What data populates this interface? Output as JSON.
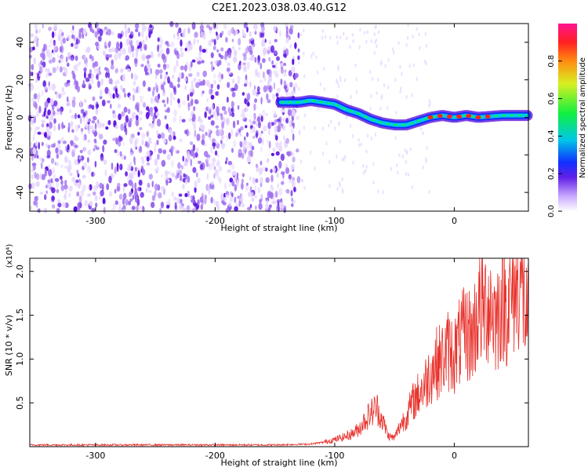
{
  "title": "C2E1.2023.038.03.40.G12",
  "colors": {
    "snr_line": "#e8302a",
    "frame": "#000000",
    "dots_light": "#e6d6ff",
    "dots_mid": "#a070f0",
    "dots_dark": "#5a10e0"
  },
  "spectrogram": {
    "type": "heatmap",
    "xlabel": "Height of straight line (km)",
    "ylabel": "Frequency (Hz)",
    "xlim": [
      -355,
      62
    ],
    "ylim": [
      -50,
      50
    ],
    "xticks": [
      -300,
      -200,
      -100,
      0
    ],
    "yticks": [
      40,
      20,
      0,
      -20,
      -40
    ],
    "tone_track": [
      {
        "x": -145,
        "y": 8
      },
      {
        "x": -130,
        "y": 8
      },
      {
        "x": -120,
        "y": 9
      },
      {
        "x": -110,
        "y": 8
      },
      {
        "x": -100,
        "y": 7
      },
      {
        "x": -90,
        "y": 4
      },
      {
        "x": -80,
        "y": 2
      },
      {
        "x": -70,
        "y": -1
      },
      {
        "x": -60,
        "y": -3
      },
      {
        "x": -50,
        "y": -4
      },
      {
        "x": -40,
        "y": -4
      },
      {
        "x": -30,
        "y": -2
      },
      {
        "x": -20,
        "y": 0
      },
      {
        "x": -10,
        "y": 1
      },
      {
        "x": 0,
        "y": 0
      },
      {
        "x": 10,
        "y": 1
      },
      {
        "x": 20,
        "y": 0
      },
      {
        "x": 40,
        "y": 1
      },
      {
        "x": 62,
        "y": 1
      }
    ],
    "colorbar": {
      "label": "Normalized spectral amplitude",
      "ticks": [
        "0.0",
        "0.2",
        "0.4",
        "0.6",
        "0.8"
      ],
      "range": [
        0,
        1
      ]
    }
  },
  "chart_data": {
    "type": "line",
    "xlabel": "Height of straight line (km)",
    "ylabel": "SNR (10 * v/v)",
    "y_multiplier": "(x10⁴)",
    "xlim": [
      -355,
      62
    ],
    "ylim": [
      0,
      2.15
    ],
    "xticks": [
      -300,
      -200,
      -100,
      0
    ],
    "yticks": [
      "0.5",
      "1.0",
      "1.5",
      "2.0"
    ],
    "x": [
      -355,
      -300,
      -250,
      -200,
      -150,
      -120,
      -110,
      -100,
      -90,
      -85,
      -80,
      -75,
      -70,
      -65,
      -60,
      -55,
      -50,
      -45,
      -40,
      -35,
      -30,
      -25,
      -20,
      -15,
      -10,
      -5,
      0,
      5,
      10,
      15,
      20,
      25,
      30,
      35,
      40,
      45,
      50,
      55,
      60,
      62
    ],
    "y": [
      0.02,
      0.02,
      0.02,
      0.02,
      0.02,
      0.03,
      0.05,
      0.08,
      0.12,
      0.15,
      0.2,
      0.3,
      0.38,
      0.45,
      0.3,
      0.12,
      0.1,
      0.25,
      0.35,
      0.5,
      0.6,
      0.7,
      0.85,
      0.95,
      1.0,
      1.1,
      1.05,
      1.2,
      1.3,
      1.25,
      1.55,
      1.6,
      1.65,
      1.45,
      1.7,
      1.6,
      1.8,
      1.95,
      1.5,
      1.45
    ]
  }
}
